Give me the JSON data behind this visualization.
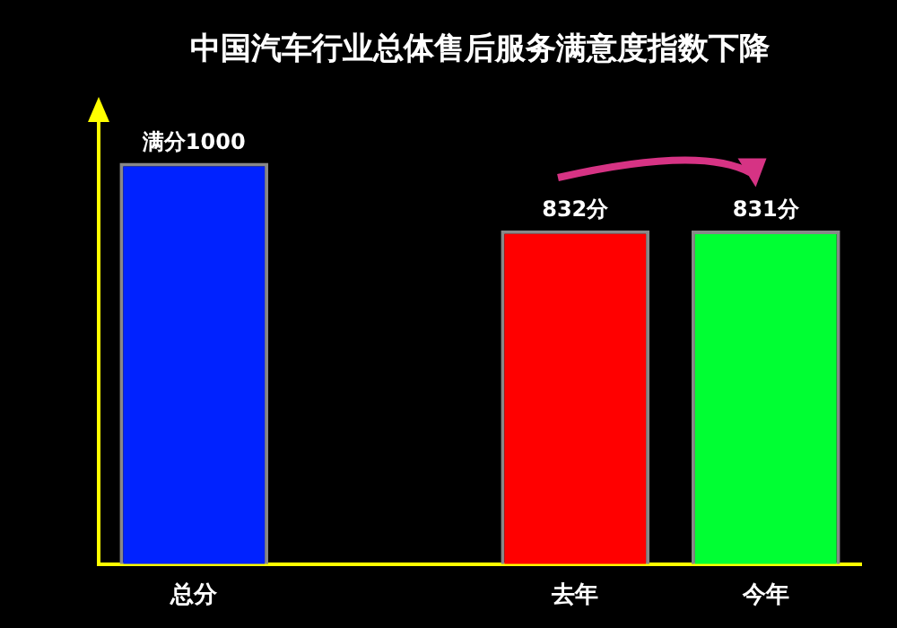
{
  "chart_data": {
    "type": "bar",
    "title": "中国汽车行业总体售后服务满意度指数下降",
    "categories": [
      "总分",
      null,
      "去年",
      "今年"
    ],
    "values": [
      1000,
      null,
      832,
      831
    ],
    "colors": [
      "#0022ff",
      "#000000",
      "#ff0000",
      "#00ff33"
    ],
    "value_labels": [
      "满分1000",
      null,
      "832分",
      "831分"
    ],
    "ylim": [
      0,
      1100
    ],
    "tick_labels": "x",
    "grid": false,
    "legend": false
  }
}
